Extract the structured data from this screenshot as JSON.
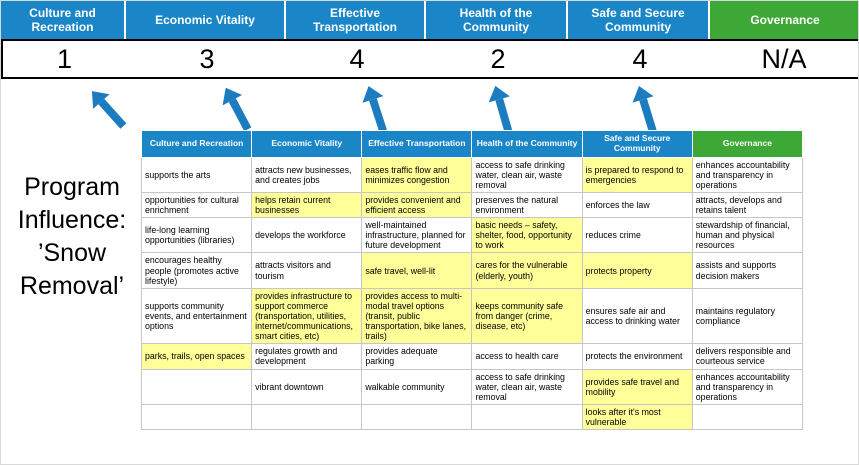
{
  "program_title": "Program\nInfluence:\n’Snow\nRemoval’",
  "banner": {
    "columns": [
      {
        "label": "Culture and Recreation",
        "score": "1"
      },
      {
        "label": "Economic Vitality",
        "score": "3"
      },
      {
        "label": "Effective Transportation",
        "score": "4"
      },
      {
        "label": "Health of the Community",
        "score": "2"
      },
      {
        "label": "Safe and Secure Community",
        "score": "4"
      },
      {
        "label": "Governance",
        "score": "N/A"
      }
    ]
  },
  "table": {
    "headers": [
      "Culture and Recreation",
      "Economic Vitality",
      "Effective Transportation",
      "Health of the Community",
      "Safe and Secure Community",
      "Governance"
    ],
    "rows": [
      [
        {
          "t": "supports the arts",
          "h": false
        },
        {
          "t": "attracts new businesses, and creates jobs",
          "h": false
        },
        {
          "t": "eases traffic flow and minimizes congestion",
          "h": true
        },
        {
          "t": "access to safe drinking water, clean air, waste removal",
          "h": false
        },
        {
          "t": "is prepared to respond to emergencies",
          "h": true
        },
        {
          "t": "enhances accountability and transparency in operations",
          "h": false
        }
      ],
      [
        {
          "t": "opportunities for cultural enrichment",
          "h": false
        },
        {
          "t": "helps retain current businesses",
          "h": true
        },
        {
          "t": "provides convenient and efficient access",
          "h": true
        },
        {
          "t": "preserves the natural environment",
          "h": false
        },
        {
          "t": "enforces the law",
          "h": false
        },
        {
          "t": "attracts, develops and retains talent",
          "h": false
        }
      ],
      [
        {
          "t": "life-long learning opportunities (libraries)",
          "h": false
        },
        {
          "t": "develops the workforce",
          "h": false
        },
        {
          "t": "well-maintained infrastructure, planned for future development",
          "h": false
        },
        {
          "t": "basic needs – safety, shelter, food, opportunity to work",
          "h": true
        },
        {
          "t": "reduces crime",
          "h": false
        },
        {
          "t": "stewardship of financial, human and physical resources",
          "h": false
        }
      ],
      [
        {
          "t": "encourages healthy people (promotes active lifestyle)",
          "h": false
        },
        {
          "t": "attracts visitors and tourism",
          "h": false
        },
        {
          "t": "safe travel, well-lit",
          "h": true
        },
        {
          "t": "cares for the vulnerable (elderly, youth)",
          "h": true
        },
        {
          "t": "protects property",
          "h": true
        },
        {
          "t": "assists and supports decision makers",
          "h": false
        }
      ],
      [
        {
          "t": "supports community events, and entertainment options",
          "h": false
        },
        {
          "t": "provides infrastructure to support commerce (transportation, utilities, internet/communications, smart cities, etc)",
          "h": true
        },
        {
          "t": "provides access to multi-modal travel options (transit, public transportation, bike lanes, trails)",
          "h": true
        },
        {
          "t": "keeps community safe from danger (crime, disease, etc)",
          "h": true
        },
        {
          "t": "ensures safe air and access to drinking water",
          "h": false
        },
        {
          "t": "maintains regulatory compliance",
          "h": false
        }
      ],
      [
        {
          "t": "parks, trails, open spaces",
          "h": true
        },
        {
          "t": "regulates growth and development",
          "h": false
        },
        {
          "t": "provides adequate parking",
          "h": false
        },
        {
          "t": "access to health care",
          "h": false
        },
        {
          "t": "protects the environment",
          "h": false
        },
        {
          "t": "delivers responsible and courteous service",
          "h": false
        }
      ],
      [
        {
          "t": "",
          "h": false
        },
        {
          "t": "vibrant downtown",
          "h": false
        },
        {
          "t": "walkable community",
          "h": false
        },
        {
          "t": "access to safe drinking water, clean air, waste removal",
          "h": false
        },
        {
          "t": "provides safe travel and mobility",
          "h": true
        },
        {
          "t": "enhances accountability and transparency in operations",
          "h": false
        }
      ],
      [
        {
          "t": "",
          "h": false
        },
        {
          "t": "",
          "h": false
        },
        {
          "t": "",
          "h": false
        },
        {
          "t": "",
          "h": false
        },
        {
          "t": "looks after it's most vulnerable",
          "h": true
        },
        {
          "t": "",
          "h": false
        }
      ]
    ]
  },
  "colors": {
    "header-blue": "#1a86c8",
    "header-green": "#3ea836",
    "highlight-yellow": "#ffff99",
    "arrow-blue": "#1d7bc0",
    "score-text": "#000000"
  }
}
